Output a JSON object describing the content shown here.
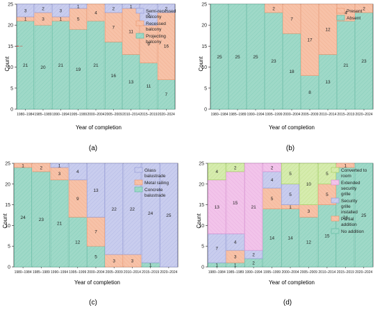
{
  "figure": {
    "panel_labels": [
      "(a)",
      "(b)",
      "(c)",
      "(d)"
    ]
  },
  "chart_data": [
    {
      "type": "bar",
      "stacked": true,
      "categories": [
        "1980–1984",
        "1985–1989",
        "1990–1994",
        "1995–1999",
        "2000–2004",
        "2005–2009",
        "2010–2014",
        "2015–2019",
        "2020–2024"
      ],
      "xlabel": "Year of completion",
      "ylabel": "Count",
      "ylim": [
        0,
        25
      ],
      "yticks": [
        0,
        5,
        10,
        15,
        20,
        25
      ],
      "legend_position": "top-right",
      "reference_line": {
        "y": 15,
        "color": "#e03030",
        "style": "dash-dot"
      },
      "series": [
        {
          "name": "Projecting balcony",
          "color": "#9fd9c8",
          "edge": "#5ab79d",
          "values": [
            21,
            20,
            21,
            19,
            21,
            16,
            13,
            11,
            7
          ]
        },
        {
          "name": "Recessed balcony",
          "color": "#f7c2a8",
          "edge": "#e8926a",
          "values": [
            1,
            3,
            1,
            5,
            4,
            7,
            11,
            9,
            16
          ]
        },
        {
          "name": "Semi-recessed balcony",
          "color": "#c9cdee",
          "edge": "#8f96d4",
          "values": [
            3,
            2,
            3,
            1,
            0,
            2,
            1,
            5,
            2
          ]
        }
      ]
    },
    {
      "type": "bar",
      "stacked": true,
      "categories": [
        "1980–1984",
        "1985–1989",
        "1990–1994",
        "1995–1999",
        "2000–2004",
        "2005–2009",
        "2010–2014",
        "2015–2019",
        "2020–2024"
      ],
      "xlabel": "Year of completion",
      "ylabel": "Count",
      "ylim": [
        0,
        25
      ],
      "yticks": [
        0,
        5,
        10,
        15,
        20,
        25
      ],
      "legend_position": "top-right",
      "series": [
        {
          "name": "Absent",
          "color": "#9fd9c8",
          "edge": "#5ab79d",
          "values": [
            25,
            25,
            25,
            23,
            18,
            8,
            13,
            21,
            23
          ]
        },
        {
          "name": "Present",
          "color": "#f7c2a8",
          "edge": "#e8926a",
          "values": [
            0,
            0,
            0,
            2,
            7,
            17,
            12,
            4,
            2
          ]
        }
      ]
    },
    {
      "type": "bar",
      "stacked": true,
      "categories": [
        "1980–1984",
        "1985–1989",
        "1990–1994",
        "1995–1999",
        "2000–2004",
        "2005–2009",
        "2010–2014",
        "2015–2019",
        "2020–2024"
      ],
      "xlabel": "Year of completion",
      "ylabel": "Count",
      "ylim": [
        0,
        25
      ],
      "yticks": [
        0,
        5,
        10,
        15,
        20,
        25
      ],
      "legend_position": "top-right",
      "series": [
        {
          "name": "Concrete balustrade",
          "color": "#9fd9c8",
          "edge": "#5ab79d",
          "values": [
            24,
            23,
            21,
            12,
            5,
            0,
            0,
            1,
            0
          ]
        },
        {
          "name": "Metal railing",
          "color": "#f7c2a8",
          "edge": "#e8926a",
          "values": [
            1,
            2,
            3,
            9,
            7,
            3,
            3,
            0,
            0
          ]
        },
        {
          "name": "Glass balustrade",
          "color": "#c9cdee",
          "edge": "#8f96d4",
          "values": [
            0,
            0,
            1,
            4,
            13,
            22,
            22,
            24,
            25
          ]
        }
      ]
    },
    {
      "type": "bar",
      "stacked": true,
      "categories": [
        "1980–1984",
        "1985–1989",
        "1990–1994",
        "1995–1999",
        "2000–2004",
        "2005–2009",
        "2010–2014",
        "2015–2019",
        "2020–2024"
      ],
      "xlabel": "Year of completion",
      "ylabel": "Count",
      "ylim": [
        0,
        25
      ],
      "yticks": [
        0,
        5,
        10,
        15,
        20,
        25
      ],
      "legend_position": "top-right",
      "series": [
        {
          "name": "No addition",
          "color": "#9fd9c8",
          "edge": "#5ab79d",
          "values": [
            1,
            1,
            2,
            14,
            14,
            12,
            15,
            24,
            25
          ]
        },
        {
          "name": "Partial addition",
          "color": "#f7c2a8",
          "edge": "#e8926a",
          "values": [
            0,
            3,
            0,
            5,
            1,
            3,
            5,
            1,
            0
          ]
        },
        {
          "name": "Security grille installed",
          "color": "#c9cdee",
          "edge": "#8f96d4",
          "values": [
            7,
            4,
            2,
            4,
            5,
            0,
            0,
            0,
            0
          ]
        },
        {
          "name": "Extended security grille",
          "color": "#f2c4ea",
          "edge": "#d98bd0",
          "values": [
            13,
            15,
            21,
            2,
            0,
            0,
            0,
            0,
            0
          ]
        },
        {
          "name": "Converted to room",
          "color": "#d6ecae",
          "edge": "#9fcb5b",
          "values": [
            4,
            2,
            0,
            0,
            5,
            10,
            5,
            0,
            0
          ]
        }
      ]
    }
  ]
}
